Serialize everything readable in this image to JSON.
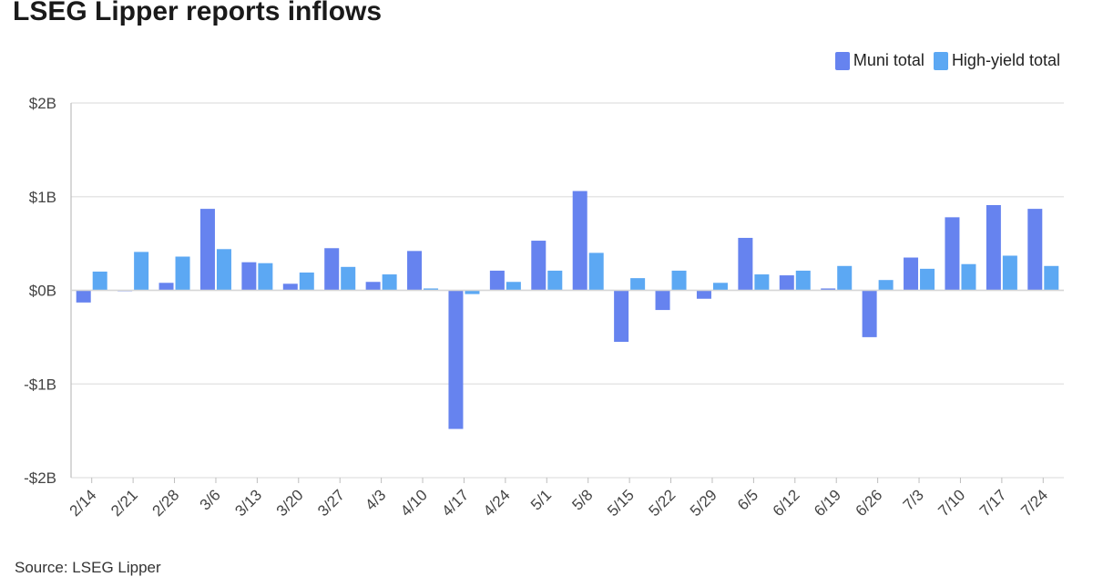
{
  "title": "LSEG Lipper reports inflows",
  "source": "Source: LSEG Lipper",
  "colors": {
    "muni": "#6683ef",
    "high_yield": "#5ca8f3",
    "grid": "#e6e6e6",
    "axis_text": "#444444"
  },
  "chart_data": {
    "type": "bar",
    "title": "LSEG Lipper reports inflows",
    "xlabel": "",
    "ylabel": "",
    "ylim": [
      -2,
      2
    ],
    "y_ticks": [
      2,
      1,
      0,
      -1,
      -2
    ],
    "y_tick_labels": [
      "$2B",
      "$1B",
      "$0B",
      "-$1B",
      "-$2B"
    ],
    "unit": "billions of dollars",
    "grid": true,
    "legend_position": "top-right",
    "categories": [
      "2/14",
      "2/21",
      "2/28",
      "3/6",
      "3/13",
      "3/20",
      "3/27",
      "4/3",
      "4/10",
      "4/17",
      "4/24",
      "5/1",
      "5/8",
      "5/15",
      "5/22",
      "5/29",
      "6/5",
      "6/12",
      "6/19",
      "6/26",
      "7/3",
      "7/10",
      "7/17",
      "7/24"
    ],
    "series": [
      {
        "name": "Muni total",
        "values": [
          -0.13,
          -0.01,
          0.08,
          0.87,
          0.3,
          0.07,
          0.45,
          0.09,
          0.42,
          -1.48,
          0.21,
          0.53,
          1.06,
          -0.55,
          -0.21,
          -0.09,
          0.56,
          0.16,
          0.02,
          -0.5,
          0.35,
          0.78,
          0.91,
          0.87
        ]
      },
      {
        "name": "High-yield total",
        "values": [
          0.2,
          0.41,
          0.36,
          0.44,
          0.29,
          0.19,
          0.25,
          0.17,
          0.02,
          -0.04,
          0.09,
          0.21,
          0.4,
          0.13,
          0.21,
          0.08,
          0.17,
          0.21,
          0.26,
          0.11,
          0.23,
          0.28,
          0.37,
          0.26
        ]
      }
    ]
  }
}
